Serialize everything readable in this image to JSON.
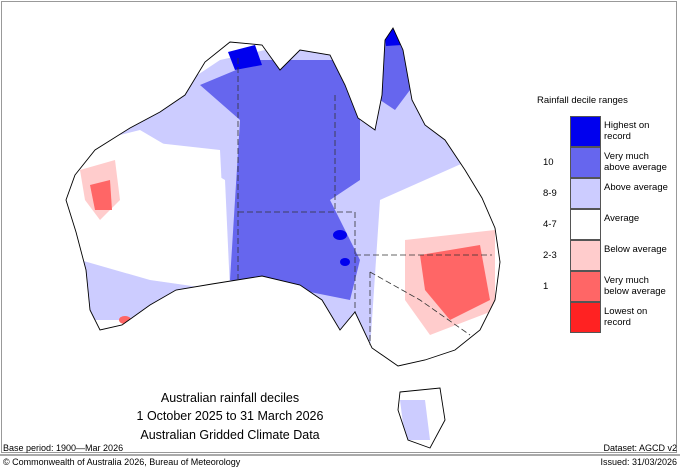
{
  "map": {
    "title_lines": [
      "Australian rainfall deciles",
      "1 October 2025 to 31 March 2026",
      "Australian Gridded Climate Data"
    ],
    "base_period": "Base period: 1900—Mar 2026",
    "dataset": "Dataset: AGCD v2",
    "copyright": "© Commonwealth of Australia 2026, Bureau of Meteorology",
    "issued": "Issued: 31/03/2026"
  },
  "legend": {
    "title": "Rainfall decile ranges",
    "items": [
      {
        "label": "Highest on record",
        "decile": "",
        "color": "#0000ee"
      },
      {
        "label": "Very much above average",
        "decile": "10",
        "color": "#6666ee"
      },
      {
        "label": "Above average",
        "decile": "8-9",
        "color": "#ccccff"
      },
      {
        "label": "Average",
        "decile": "4-7",
        "color": "#ffffff"
      },
      {
        "label": "Below average",
        "decile": "2-3",
        "color": "#ffcccc"
      },
      {
        "label": "Very much below average",
        "decile": "1",
        "color": "#ff6666"
      },
      {
        "label": "Lowest on record",
        "decile": "",
        "color": "#ff2222"
      }
    ]
  }
}
